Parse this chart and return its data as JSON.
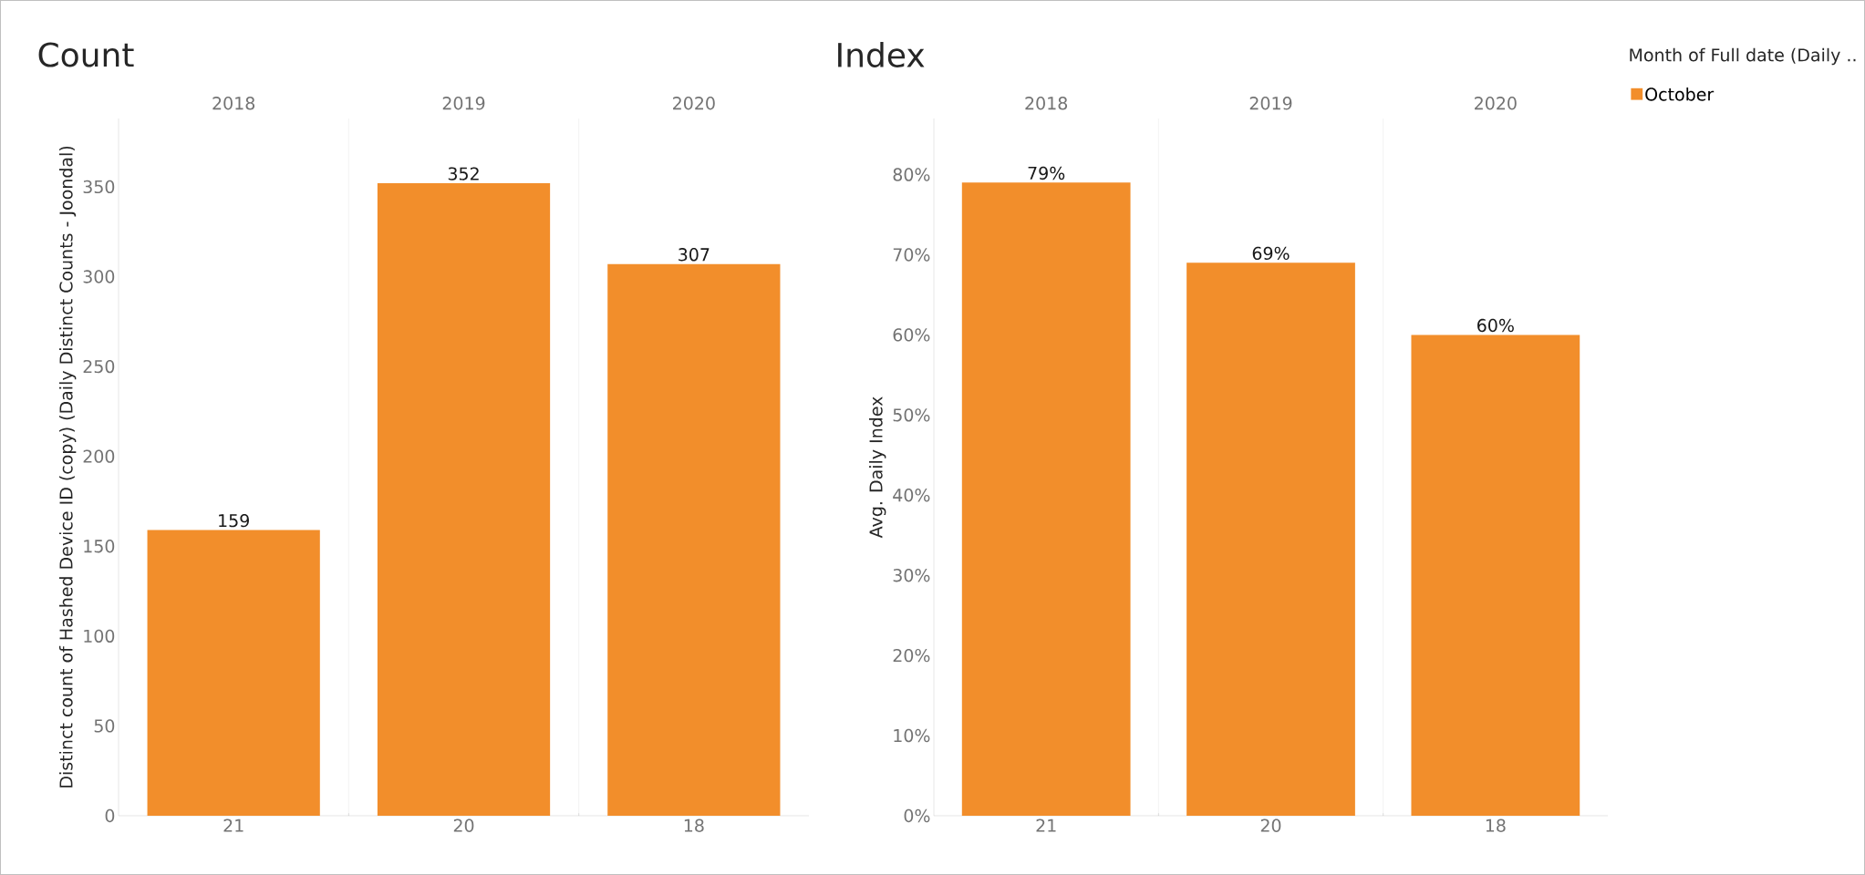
{
  "chart_data": [
    {
      "type": "bar",
      "title": "Count",
      "ylabel": "Distinct count of Hashed Device ID (copy) (Daily Distinct Counts - Joondal)",
      "categories": [
        "21",
        "20",
        "18"
      ],
      "annotations": [
        "2018",
        "2019",
        "2020"
      ],
      "series": [
        {
          "color": "#f28e2b",
          "values": [
            159,
            352,
            307
          ]
        }
      ],
      "value_labels": [
        "159",
        "352",
        "307"
      ],
      "ylim": [
        0,
        388
      ],
      "yticks": [
        0,
        50,
        100,
        150,
        200,
        250,
        300,
        350
      ]
    },
    {
      "type": "bar",
      "title": "Index",
      "ylabel": "Avg. Daily Index",
      "legend_title": "Month of Full date (Daily ..",
      "legend": "top right",
      "categories": [
        "21",
        "20",
        "18"
      ],
      "annotations": [
        "2018",
        "2019",
        "2020"
      ],
      "series": [
        {
          "name": "October",
          "color": "#f28e2b",
          "values": [
            79,
            69,
            60
          ]
        }
      ],
      "value_labels": [
        "79%",
        "69%",
        "60%"
      ],
      "ylim": [
        0,
        87
      ],
      "yticks": [
        {
          "value": 0,
          "label": "0%"
        },
        {
          "value": 10,
          "label": "10%"
        },
        {
          "value": 20,
          "label": "20%"
        },
        {
          "value": 30,
          "label": "30%"
        },
        {
          "value": 40,
          "label": "40%"
        },
        {
          "value": 50,
          "label": "50%"
        },
        {
          "value": 60,
          "label": "60%"
        },
        {
          "value": 70,
          "label": "70%"
        },
        {
          "value": 80,
          "label": "80%"
        }
      ]
    }
  ]
}
